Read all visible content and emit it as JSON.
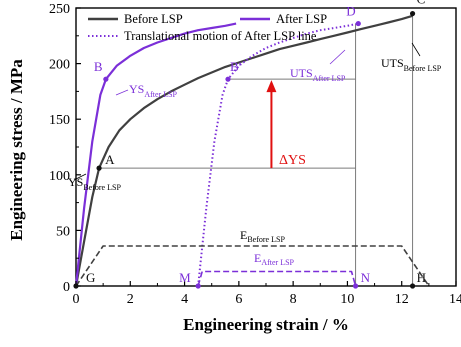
{
  "chart_data": {
    "type": "line",
    "xlabel": "Engineering strain / %",
    "ylabel": "Engineering stress / MPa",
    "xlim": [
      0,
      14
    ],
    "ylim": [
      0,
      250
    ],
    "xticks": [
      "0",
      "2",
      "4",
      "6",
      "8",
      "10",
      "12",
      "14"
    ],
    "yticks": [
      "0",
      "50",
      "100",
      "150",
      "200",
      "250"
    ],
    "legend_position": "top-left",
    "series": [
      {
        "name": "Before LSP",
        "color": "#404040",
        "style": "solid",
        "x": [
          0,
          0.3,
          0.6,
          0.85,
          1.2,
          1.6,
          2.0,
          2.5,
          3.0,
          3.5,
          4.0,
          4.5,
          5.0,
          5.5,
          6.0,
          6.5,
          7.0,
          7.5,
          8.0,
          8.5,
          9.0,
          9.5,
          10.0,
          10.5,
          11.0,
          11.5,
          12.0,
          12.4
        ],
        "y": [
          0,
          40,
          80,
          106,
          125,
          140,
          150,
          160,
          168,
          175,
          181,
          187,
          192,
          197,
          201,
          205,
          209,
          213,
          216,
          219,
          222,
          225,
          228,
          231,
          234,
          237,
          240,
          243
        ]
      },
      {
        "name": "After LSP",
        "color": "#7b2fd8",
        "style": "solid",
        "x": [
          0,
          0.3,
          0.6,
          0.9,
          1.1,
          1.5,
          2.0,
          2.5,
          3.0,
          3.5,
          4.0,
          4.5,
          5.0,
          5.5,
          5.9
        ],
        "y": [
          0,
          70,
          130,
          172,
          186,
          198,
          207,
          214,
          219,
          223,
          227,
          230,
          232,
          234,
          236
        ]
      },
      {
        "name": "Translational motion of After LSP line",
        "color": "#7b2fd8",
        "style": "dotted",
        "x": [
          4.5,
          4.8,
          5.1,
          5.4,
          5.6,
          6.0,
          6.5,
          7.0,
          7.5,
          8.0,
          8.5,
          9.0,
          9.5,
          10.0,
          10.4
        ],
        "y": [
          0,
          70,
          130,
          172,
          186,
          198,
          207,
          214,
          219,
          223,
          227,
          230,
          232,
          234,
          236
        ]
      },
      {
        "name": "",
        "color": "#404040",
        "style": "dashed",
        "x": [
          0,
          1,
          12,
          13
        ],
        "y": [
          0,
          36,
          36,
          0
        ]
      },
      {
        "name": "",
        "color": "#7b2fd8",
        "style": "dashed",
        "x": [
          4.5,
          4.65,
          10.15,
          10.3
        ],
        "y": [
          0,
          13,
          13,
          0
        ]
      }
    ],
    "guide_lines": [
      {
        "x1": 0.85,
        "y1": 106,
        "x2": 10.3,
        "y2": 106,
        "color": "#7a7a7a"
      },
      {
        "x1": 5.6,
        "y1": 186,
        "x2": 10.3,
        "y2": 186,
        "color": "#7a7a7a"
      },
      {
        "x1": 10.3,
        "y1": 0,
        "x2": 10.3,
        "y2": 236,
        "color": "#7a7a7a"
      },
      {
        "x1": 12.4,
        "y1": 0,
        "x2": 12.4,
        "y2": 245,
        "color": "#7a7a7a"
      }
    ],
    "arrow": {
      "x": 7.2,
      "y_from": 106,
      "y_to": 186,
      "color": "#e01010"
    },
    "points": [
      {
        "label": "A",
        "x": 0.85,
        "y": 106,
        "color": "#111111",
        "dx": 6,
        "dy": -4
      },
      {
        "label": "B",
        "x": 1.1,
        "y": 186,
        "color": "#7b2fd8",
        "dx": -12,
        "dy": -8
      },
      {
        "label": "B′",
        "x": 5.6,
        "y": 186,
        "color": "#7b2fd8",
        "dx": 2,
        "dy": -8
      },
      {
        "label": "C",
        "x": 12.4,
        "y": 245,
        "color": "#111111",
        "dx": 4,
        "dy": -10
      },
      {
        "label": "D",
        "x": 10.4,
        "y": 236,
        "color": "#7b2fd8",
        "dx": -12,
        "dy": -8
      },
      {
        "label": "G",
        "x": 0,
        "y": 0,
        "color": "#111111",
        "dx": 10,
        "dy": -4
      },
      {
        "label": "M",
        "x": 4.5,
        "y": 0,
        "color": "#7b2fd8",
        "dx": -19,
        "dy": -4
      },
      {
        "label": "N",
        "x": 10.3,
        "y": 0,
        "color": "#7b2fd8",
        "dx": 5,
        "dy": -4
      },
      {
        "label": "H",
        "x": 12.4,
        "y": 0,
        "color": "#111111",
        "dx": 4,
        "dy": -4
      }
    ],
    "annotations": {
      "ys_before": {
        "main": "YS",
        "sub": "Before LSP"
      },
      "ys_after": {
        "main": "YS",
        "sub": "After LSP"
      },
      "delta_ys": "ΔYS",
      "uts_before": {
        "main": "UTS",
        "sub": "Before LSP"
      },
      "uts_after": {
        "main": "UTS",
        "sub": "After LSP"
      },
      "e_before": {
        "main": "E",
        "sub": "Before LSP"
      },
      "e_after": {
        "main": "E",
        "sub": "After LSP"
      }
    }
  }
}
